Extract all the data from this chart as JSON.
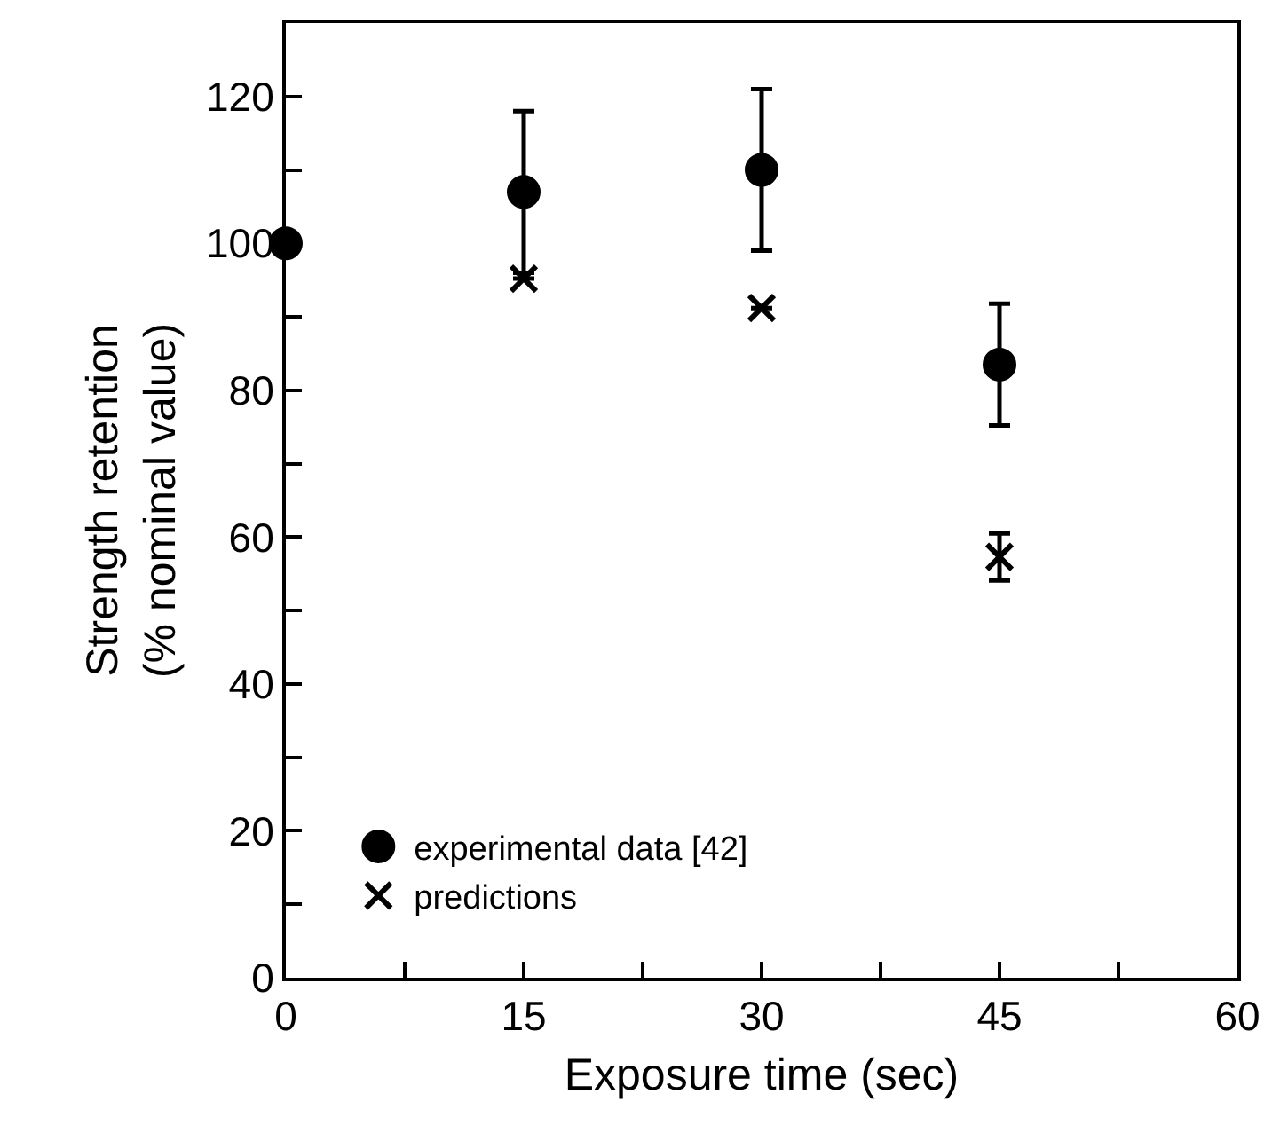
{
  "chart_data": {
    "type": "scatter",
    "xlabel": "Exposure time (sec)",
    "ylabel": "Strength retention\n(% nominal value)",
    "x": [
      0,
      15,
      30,
      45
    ],
    "series": [
      {
        "name": "experimental data [42]",
        "color": "#000000",
        "marker": "circle",
        "values": [
          100,
          107,
          110,
          83.5
        ],
        "errors": [
          null,
          11,
          11,
          8.3
        ]
      },
      {
        "name": "predictions",
        "color": "#000000",
        "marker": "cross",
        "x": [
          15,
          30,
          45
        ],
        "values": [
          95.2,
          91.2,
          57.3
        ],
        "errors": [
          null,
          null,
          3.2
        ]
      }
    ],
    "xlim": [
      0,
      60
    ],
    "ylim": [
      0,
      130
    ],
    "xticks": [
      0,
      {
        "value": 7.5,
        "label": null
      },
      15,
      {
        "value": 22.5,
        "label": null
      },
      30,
      {
        "value": 37.5,
        "label": null
      },
      45,
      {
        "value": 52.5,
        "label": null
      },
      60
    ],
    "yticks": [
      0,
      {
        "value": 10,
        "label": null
      },
      20,
      {
        "value": 30,
        "label": null
      },
      40,
      {
        "value": 50,
        "label": null
      },
      60,
      {
        "value": 70,
        "label": null
      },
      80,
      {
        "value": 90,
        "label": null
      },
      100,
      {
        "value": 110,
        "label": null
      },
      120
    ],
    "legend": "bottom left"
  }
}
